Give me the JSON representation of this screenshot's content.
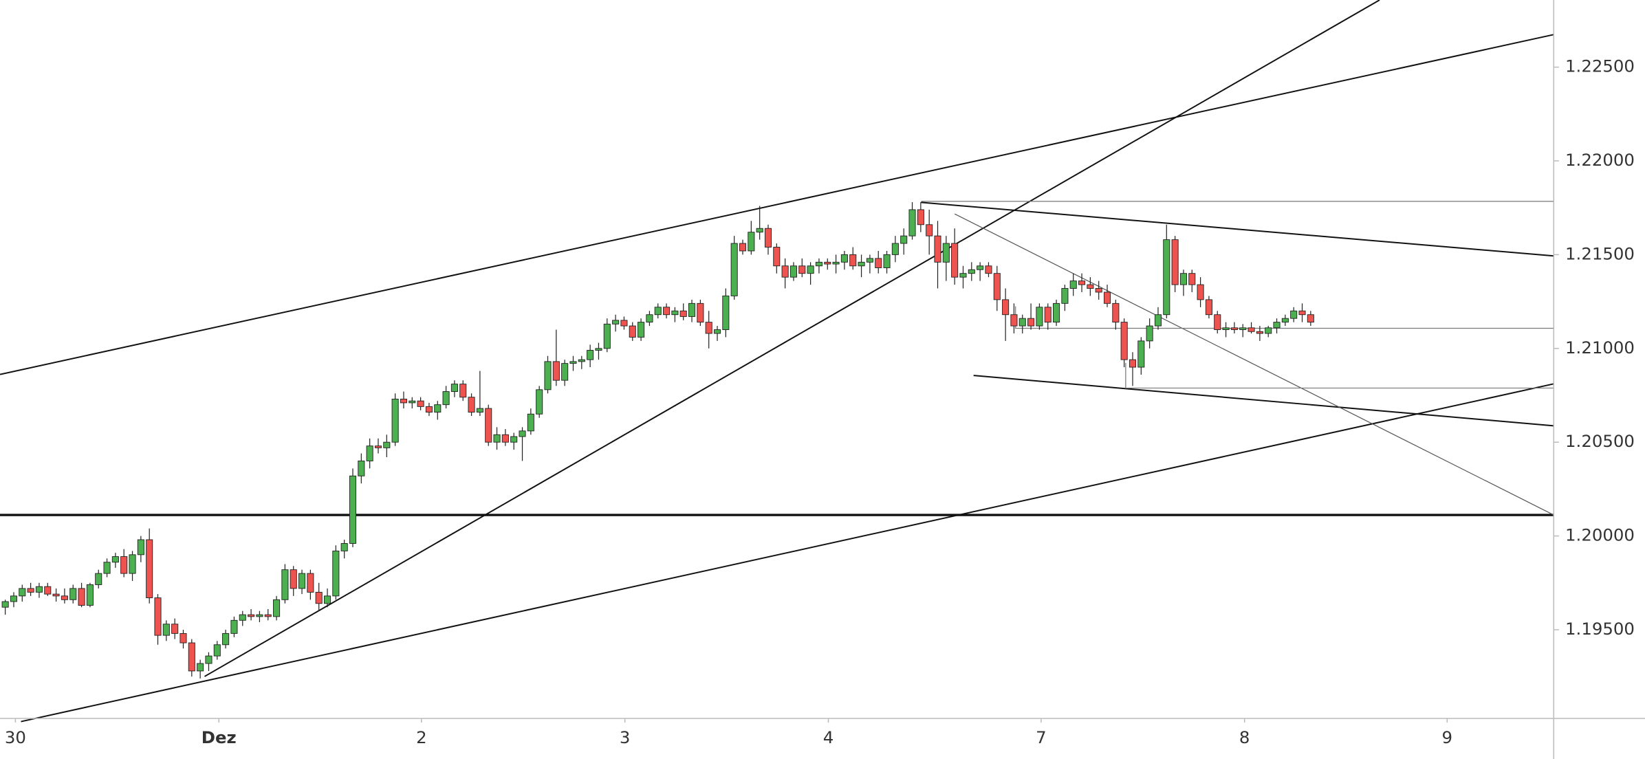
{
  "chart_data": {
    "type": "candlestick",
    "up_color": "#4caf50",
    "down_color": "#ef5350",
    "wick_color": "#222222",
    "ylim": [
      1.19027,
      1.22858
    ],
    "yticks": [
      {
        "value": 1.195,
        "label": "1.19500"
      },
      {
        "value": 1.2,
        "label": "1.20000"
      },
      {
        "value": 1.205,
        "label": "1.20500"
      },
      {
        "value": 1.21,
        "label": "1.21000"
      },
      {
        "value": 1.215,
        "label": "1.21500"
      },
      {
        "value": 1.22,
        "label": "1.22000"
      },
      {
        "value": 1.225,
        "label": "1.22500"
      }
    ],
    "xticks": [
      {
        "value": 1.2,
        "label": "30"
      },
      {
        "value": 25.2,
        "label": "Dez"
      },
      {
        "value": 49.1,
        "label": "2"
      },
      {
        "value": 73.1,
        "label": "3"
      },
      {
        "value": 97.1,
        "label": "4"
      },
      {
        "value": 122.2,
        "label": "7"
      },
      {
        "value": 146.2,
        "label": "8"
      },
      {
        "value": 170.1,
        "label": "9"
      }
    ],
    "ohlc": [
      [
        1.1962,
        1.1966,
        1.1958,
        1.1965
      ],
      [
        1.1965,
        1.197,
        1.1962,
        1.1968
      ],
      [
        1.1968,
        1.1974,
        1.1965,
        1.1972
      ],
      [
        1.1972,
        1.1975,
        1.1968,
        1.197
      ],
      [
        1.197,
        1.1975,
        1.1967,
        1.1973
      ],
      [
        1.1973,
        1.1975,
        1.1968,
        1.1969
      ],
      [
        1.1969,
        1.1972,
        1.1965,
        1.1968
      ],
      [
        1.1968,
        1.1972,
        1.1964,
        1.1966
      ],
      [
        1.1966,
        1.1974,
        1.1964,
        1.1972
      ],
      [
        1.1972,
        1.1975,
        1.1962,
        1.1963
      ],
      [
        1.1963,
        1.1975,
        1.1962,
        1.1974
      ],
      [
        1.1974,
        1.1982,
        1.1972,
        1.198
      ],
      [
        1.198,
        1.1988,
        1.1978,
        1.1986
      ],
      [
        1.1986,
        1.1991,
        1.1983,
        1.1989
      ],
      [
        1.1989,
        1.1993,
        1.1978,
        1.198
      ],
      [
        1.198,
        1.1992,
        1.1976,
        1.199
      ],
      [
        1.199,
        1.2,
        1.1986,
        1.1998
      ],
      [
        1.1998,
        1.2004,
        1.1964,
        1.1967
      ],
      [
        1.1967,
        1.1969,
        1.1942,
        1.1947
      ],
      [
        1.1947,
        1.1955,
        1.1944,
        1.1953
      ],
      [
        1.1953,
        1.1956,
        1.1945,
        1.1948
      ],
      [
        1.1948,
        1.195,
        1.194,
        1.1943
      ],
      [
        1.1943,
        1.1945,
        1.1925,
        1.1928
      ],
      [
        1.1928,
        1.1934,
        1.1924,
        1.1932
      ],
      [
        1.1932,
        1.1938,
        1.1928,
        1.1936
      ],
      [
        1.1936,
        1.1944,
        1.1934,
        1.1942
      ],
      [
        1.1942,
        1.195,
        1.194,
        1.1948
      ],
      [
        1.1948,
        1.1957,
        1.1946,
        1.1955
      ],
      [
        1.1955,
        1.196,
        1.1952,
        1.1958
      ],
      [
        1.1958,
        1.1961,
        1.1955,
        1.1957
      ],
      [
        1.1957,
        1.196,
        1.1954,
        1.1958
      ],
      [
        1.1958,
        1.1961,
        1.1955,
        1.1957
      ],
      [
        1.1957,
        1.1968,
        1.1955,
        1.1966
      ],
      [
        1.1966,
        1.1985,
        1.1964,
        1.1982
      ],
      [
        1.1982,
        1.1984,
        1.1968,
        1.1972
      ],
      [
        1.1972,
        1.1982,
        1.1969,
        1.198
      ],
      [
        1.198,
        1.1982,
        1.1966,
        1.197
      ],
      [
        1.197,
        1.1975,
        1.196,
        1.1964
      ],
      [
        1.1964,
        1.1972,
        1.1962,
        1.1968
      ],
      [
        1.1968,
        1.1995,
        1.1966,
        1.1992
      ],
      [
        1.1992,
        1.1998,
        1.1988,
        1.1996
      ],
      [
        1.1996,
        1.2036,
        1.1994,
        1.2032
      ],
      [
        1.2032,
        1.2044,
        1.2028,
        1.204
      ],
      [
        1.204,
        1.2052,
        1.2036,
        1.2048
      ],
      [
        1.2048,
        1.2052,
        1.2044,
        1.2047
      ],
      [
        1.2047,
        1.2054,
        1.2042,
        1.205
      ],
      [
        1.205,
        1.2076,
        1.2048,
        1.2073
      ],
      [
        1.2073,
        1.2077,
        1.2068,
        1.2071
      ],
      [
        1.2071,
        1.2074,
        1.2068,
        1.2072
      ],
      [
        1.2072,
        1.2074,
        1.2067,
        1.2069
      ],
      [
        1.2069,
        1.2071,
        1.2064,
        1.2066
      ],
      [
        1.2066,
        1.2072,
        1.2062,
        1.207
      ],
      [
        1.207,
        1.208,
        1.2068,
        1.2077
      ],
      [
        1.2077,
        1.2083,
        1.2074,
        1.2081
      ],
      [
        1.2081,
        1.2083,
        1.2072,
        1.2074
      ],
      [
        1.2074,
        1.2076,
        1.2064,
        1.2066
      ],
      [
        1.2066,
        1.2088,
        1.2064,
        1.2068
      ],
      [
        1.2068,
        1.207,
        1.2048,
        1.205
      ],
      [
        1.205,
        1.2058,
        1.2046,
        1.2054
      ],
      [
        1.2054,
        1.2057,
        1.2048,
        1.205
      ],
      [
        1.205,
        1.2055,
        1.2046,
        1.2053
      ],
      [
        1.2053,
        1.2058,
        1.204,
        1.2056
      ],
      [
        1.2056,
        1.2068,
        1.2054,
        1.2065
      ],
      [
        1.2065,
        1.208,
        1.2063,
        1.2078
      ],
      [
        1.2078,
        1.2096,
        1.2076,
        1.2093
      ],
      [
        1.2093,
        1.211,
        1.208,
        1.2083
      ],
      [
        1.2083,
        1.2094,
        1.208,
        1.2092
      ],
      [
        1.2092,
        1.2096,
        1.2088,
        1.2093
      ],
      [
        1.2093,
        1.2096,
        1.2089,
        1.2094
      ],
      [
        1.2094,
        1.2102,
        1.209,
        1.2099
      ],
      [
        1.2099,
        1.2103,
        1.2094,
        1.21
      ],
      [
        1.21,
        1.2116,
        1.2098,
        1.2113
      ],
      [
        1.2113,
        1.2118,
        1.2109,
        1.2115
      ],
      [
        1.2115,
        1.2117,
        1.211,
        1.2112
      ],
      [
        1.2112,
        1.2114,
        1.2104,
        1.2106
      ],
      [
        1.2106,
        1.2116,
        1.2104,
        1.2114
      ],
      [
        1.2114,
        1.212,
        1.2112,
        1.2118
      ],
      [
        1.2118,
        1.2124,
        1.2116,
        1.2122
      ],
      [
        1.2122,
        1.2124,
        1.2116,
        1.2118
      ],
      [
        1.2118,
        1.2122,
        1.2114,
        1.212
      ],
      [
        1.212,
        1.2124,
        1.2115,
        1.2117
      ],
      [
        1.2117,
        1.2126,
        1.2114,
        1.2124
      ],
      [
        1.2124,
        1.2126,
        1.2112,
        1.2114
      ],
      [
        1.2114,
        1.212,
        1.21,
        1.2108
      ],
      [
        1.2108,
        1.2112,
        1.2104,
        1.211
      ],
      [
        1.211,
        1.2132,
        1.2106,
        1.2128
      ],
      [
        1.2128,
        1.216,
        1.2126,
        1.2156
      ],
      [
        1.2156,
        1.2158,
        1.215,
        1.2152
      ],
      [
        1.2152,
        1.2168,
        1.215,
        1.2162
      ],
      [
        1.2162,
        1.2176,
        1.2158,
        1.2164
      ],
      [
        1.2164,
        1.2166,
        1.215,
        1.2154
      ],
      [
        1.2154,
        1.2156,
        1.214,
        1.2144
      ],
      [
        1.2144,
        1.2148,
        1.2132,
        1.2138
      ],
      [
        1.2138,
        1.2146,
        1.2136,
        1.2144
      ],
      [
        1.2144,
        1.2148,
        1.2138,
        1.214
      ],
      [
        1.214,
        1.2146,
        1.2134,
        1.2144
      ],
      [
        1.2144,
        1.2148,
        1.214,
        1.2146
      ],
      [
        1.2146,
        1.2148,
        1.2142,
        1.2145
      ],
      [
        1.2145,
        1.215,
        1.214,
        1.2146
      ],
      [
        1.2146,
        1.2152,
        1.2142,
        1.215
      ],
      [
        1.215,
        1.2154,
        1.2142,
        1.2144
      ],
      [
        1.2144,
        1.215,
        1.2138,
        1.2146
      ],
      [
        1.2146,
        1.215,
        1.214,
        1.2148
      ],
      [
        1.2148,
        1.2152,
        1.214,
        1.2143
      ],
      [
        1.2143,
        1.2152,
        1.214,
        1.215
      ],
      [
        1.215,
        1.216,
        1.2146,
        1.2156
      ],
      [
        1.2156,
        1.2164,
        1.215,
        1.216
      ],
      [
        1.216,
        1.2178,
        1.2158,
        1.2174
      ],
      [
        1.2174,
        1.2178,
        1.2162,
        1.2166
      ],
      [
        1.2166,
        1.2174,
        1.215,
        1.216
      ],
      [
        1.216,
        1.2168,
        1.2132,
        1.2146
      ],
      [
        1.2146,
        1.216,
        1.2136,
        1.2156
      ],
      [
        1.2156,
        1.2164,
        1.2134,
        1.2138
      ],
      [
        1.2138,
        1.2144,
        1.2132,
        1.214
      ],
      [
        1.214,
        1.2146,
        1.2136,
        1.2142
      ],
      [
        1.2142,
        1.2146,
        1.2136,
        1.2144
      ],
      [
        1.2144,
        1.2146,
        1.2138,
        1.214
      ],
      [
        1.214,
        1.2144,
        1.212,
        1.2126
      ],
      [
        1.2126,
        1.2132,
        1.2104,
        1.2118
      ],
      [
        1.2118,
        1.2124,
        1.2108,
        1.2112
      ],
      [
        1.2112,
        1.2118,
        1.2108,
        1.2116
      ],
      [
        1.2116,
        1.2124,
        1.211,
        1.2112
      ],
      [
        1.2112,
        1.2124,
        1.211,
        1.2122
      ],
      [
        1.2122,
        1.2124,
        1.211,
        1.2114
      ],
      [
        1.2114,
        1.2126,
        1.2112,
        1.2124
      ],
      [
        1.2124,
        1.2134,
        1.212,
        1.2132
      ],
      [
        1.2132,
        1.214,
        1.2128,
        1.2136
      ],
      [
        1.2136,
        1.214,
        1.213,
        1.2134
      ],
      [
        1.2134,
        1.2138,
        1.2128,
        1.2132
      ],
      [
        1.2132,
        1.2136,
        1.2126,
        1.213
      ],
      [
        1.213,
        1.2134,
        1.2122,
        1.2124
      ],
      [
        1.2124,
        1.2126,
        1.211,
        1.2114
      ],
      [
        1.2114,
        1.2116,
        1.209,
        1.2094
      ],
      [
        1.2094,
        1.2098,
        1.208,
        1.209
      ],
      [
        1.209,
        1.2106,
        1.2086,
        1.2104
      ],
      [
        1.2104,
        1.2116,
        1.21,
        1.2112
      ],
      [
        1.2112,
        1.2122,
        1.211,
        1.2118
      ],
      [
        1.2118,
        1.2166,
        1.2116,
        1.2158
      ],
      [
        1.2158,
        1.216,
        1.213,
        1.2134
      ],
      [
        1.2134,
        1.2142,
        1.2128,
        1.214
      ],
      [
        1.214,
        1.2142,
        1.213,
        1.2134
      ],
      [
        1.2134,
        1.2138,
        1.2122,
        1.2126
      ],
      [
        1.2126,
        1.2128,
        1.2116,
        1.2118
      ],
      [
        1.2118,
        1.212,
        1.2108,
        1.211
      ],
      [
        1.211,
        1.2114,
        1.2106,
        1.2111
      ],
      [
        1.2111,
        1.2114,
        1.2108,
        1.211
      ],
      [
        1.211,
        1.2113,
        1.2106,
        1.2111
      ],
      [
        1.2111,
        1.2114,
        1.2108,
        1.2109
      ],
      [
        1.2109,
        1.2112,
        1.2104,
        1.2108
      ],
      [
        1.2108,
        1.2112,
        1.2106,
        1.2111
      ],
      [
        1.2111,
        1.2116,
        1.2108,
        1.2114
      ],
      [
        1.2114,
        1.2118,
        1.2112,
        1.2116
      ],
      [
        1.2116,
        1.2122,
        1.2114,
        1.212
      ],
      [
        1.212,
        1.2124,
        1.2114,
        1.2118
      ],
      [
        1.2118,
        1.212,
        1.2112,
        1.2114
      ]
    ]
  }
}
